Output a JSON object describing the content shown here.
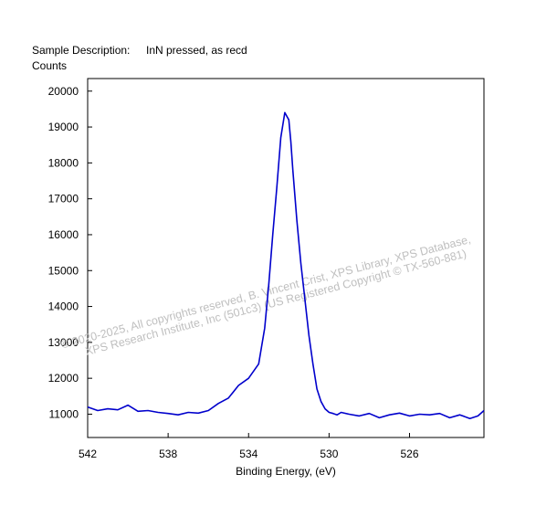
{
  "chart_data": {
    "type": "line",
    "description_label": "Sample Description:",
    "description_value": "InN pressed, as recd",
    "ylabel": "Counts",
    "xlabel": "Binding Energy, (eV)",
    "x_reversed": true,
    "xlim": [
      542,
      522.3
    ],
    "ylim": [
      10350,
      20350
    ],
    "x_ticks": [
      542,
      538,
      534,
      530,
      526
    ],
    "y_ticks": [
      11000,
      12000,
      13000,
      14000,
      15000,
      16000,
      17000,
      18000,
      19000,
      20000
    ],
    "grid": false,
    "line_color": "#0000cc",
    "series": [
      {
        "x": [
          542.0,
          541.5,
          541.0,
          540.5,
          540.0,
          539.5,
          539.0,
          538.5,
          538.0,
          537.5,
          537.0,
          536.5,
          536.0,
          535.5,
          535.0,
          534.5,
          534.0,
          533.5,
          533.2,
          533.0,
          532.8,
          532.6,
          532.4,
          532.2,
          532.0,
          531.9,
          531.8,
          531.6,
          531.4,
          531.2,
          531.0,
          530.8,
          530.6,
          530.4,
          530.2,
          530.0,
          529.8,
          529.6,
          529.4,
          529.0,
          528.5,
          528.0,
          527.5,
          527.0,
          526.5,
          526.0,
          525.5,
          525.0,
          524.5,
          524.0,
          523.5,
          523.0,
          522.6,
          522.3
        ],
        "y": [
          11200,
          11100,
          11150,
          11120,
          11250,
          11080,
          11100,
          11050,
          11020,
          10980,
          11050,
          11030,
          11100,
          11300,
          11450,
          11800,
          12000,
          12400,
          13400,
          14600,
          16000,
          17300,
          18700,
          19400,
          19200,
          18600,
          17800,
          16400,
          15200,
          14200,
          13200,
          12400,
          11700,
          11350,
          11150,
          11050,
          11020,
          10980,
          11050,
          11000,
          10950,
          11020,
          10900,
          10980,
          11030,
          10950,
          11000,
          10980,
          11020,
          10900,
          10980,
          10880,
          10950,
          11100
        ]
      }
    ]
  },
  "watermark": {
    "line1": "©  2020-2025,  All copyrights reserved,   B. Vincent Crist,  XPS Library, XPS Database,",
    "line2": "XPS Research Institute, Inc (501c3)   (US Registered Copyright © TX-560-881)"
  }
}
